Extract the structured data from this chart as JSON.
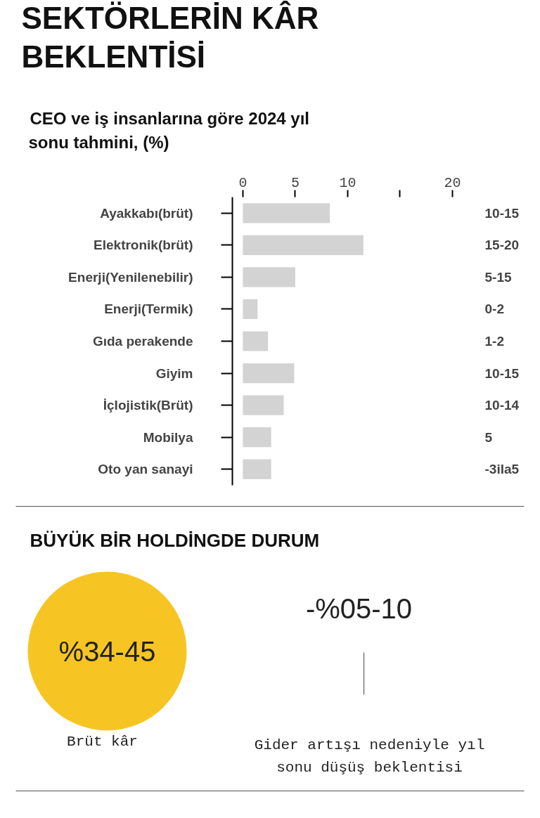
{
  "chart_data": [
    {
      "type": "bar",
      "title": "SEKTÖRLERİN KÂR BEKLENTİSİ",
      "subtitle": "CEO ve iş insanlarına göre 2024 yıl sonu tahmini, (%)",
      "orientation": "horizontal",
      "categories": [
        "Ayakkabı(brüt)",
        "Elektronik(brüt)",
        "Enerji(Yenilenebilir)",
        "Enerji(Termik)",
        "Gıda perakende",
        "Giyim",
        "İçlojistik(Brüt)",
        "Mobilya",
        "Oto yan sanayi"
      ],
      "values": [
        8.3,
        11.5,
        5,
        1.4,
        2.4,
        4.9,
        3.9,
        2.7,
        2.7
      ],
      "annotations": [
        "10-15",
        "15-20",
        "5-15",
        "0-2",
        "1-2",
        "10-15",
        "10-14",
        "5",
        "-3ila5"
      ],
      "color": "#d3d3d3",
      "xlim": [
        -1,
        20
      ],
      "xticks": [
        0,
        5,
        10,
        {
          "value": 15,
          "label": null
        },
        20
      ],
      "grid": false
    },
    {
      "type": "other",
      "title": "BÜYÜK BİR HOLDİNGDE DURUM",
      "annotations": [
        "%34-45",
        "Brüt kâr",
        "-%05-10",
        "Gider artışı nedeniyle yıl sonu düşüş beklentisi"
      ]
    }
  ]
}
